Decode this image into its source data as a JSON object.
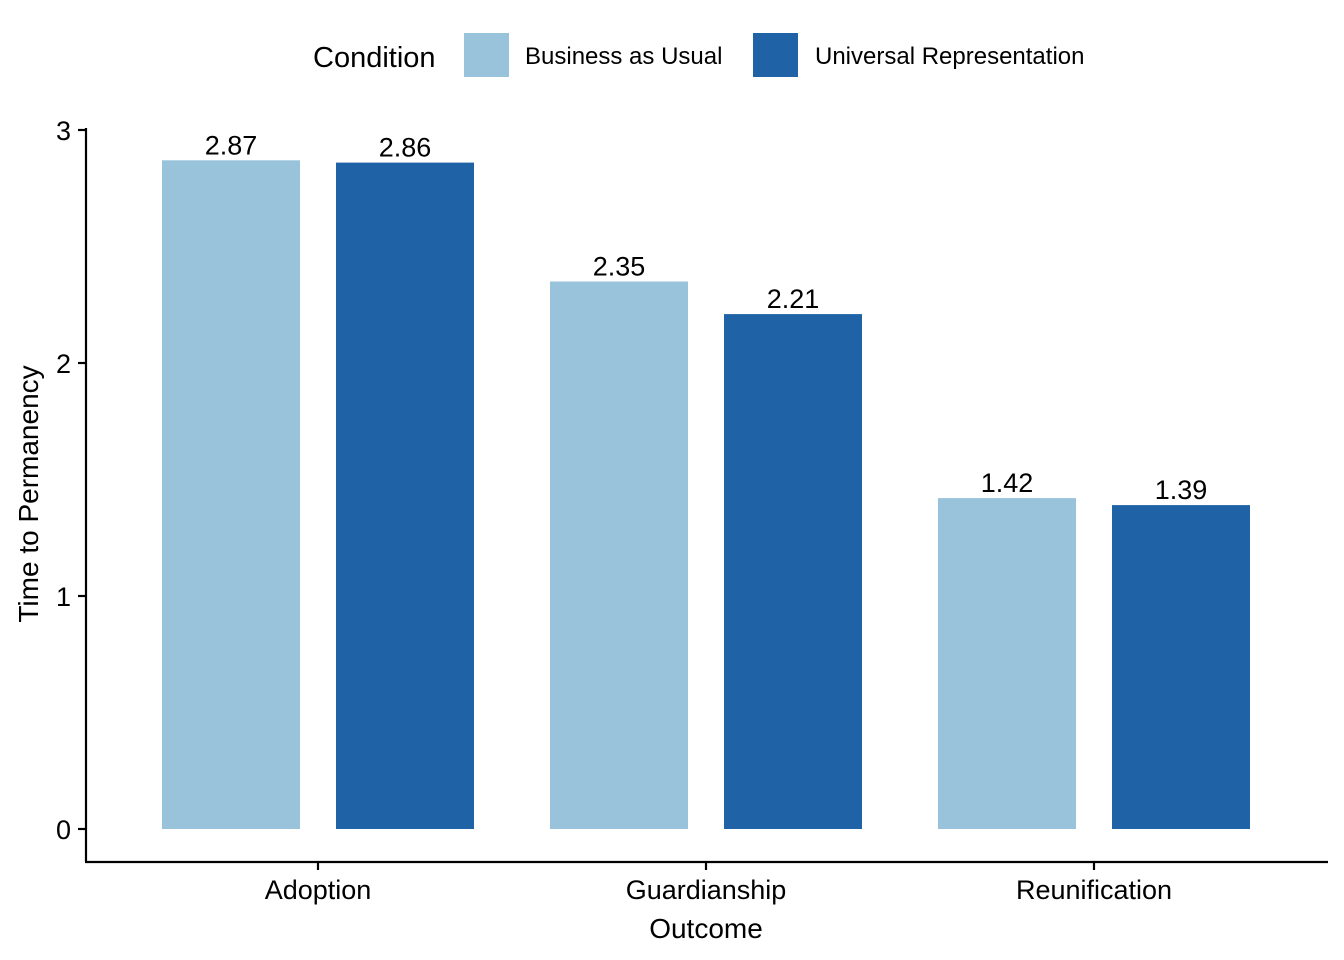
{
  "chart_data": {
    "type": "bar",
    "title": "",
    "xlabel": "Outcome",
    "ylabel": "Time to Permanency",
    "categories": [
      "Adoption",
      "Guardianship",
      "Reunification"
    ],
    "series": [
      {
        "name": "Business as Usual",
        "color": "#98c3da",
        "values": [
          2.87,
          2.35,
          1.42
        ]
      },
      {
        "name": "Universal Representation",
        "color": "#1f63a6",
        "values": [
          2.86,
          2.21,
          1.39
        ]
      }
    ],
    "value_labels": [
      [
        "2.87",
        "2.35",
        "1.42"
      ],
      [
        "2.86",
        "2.21",
        "1.39"
      ]
    ],
    "ylim": [
      0,
      3
    ],
    "yticks": [
      0,
      1,
      2,
      3
    ],
    "legend": {
      "title": "Condition",
      "position": "top"
    },
    "grid": false
  }
}
